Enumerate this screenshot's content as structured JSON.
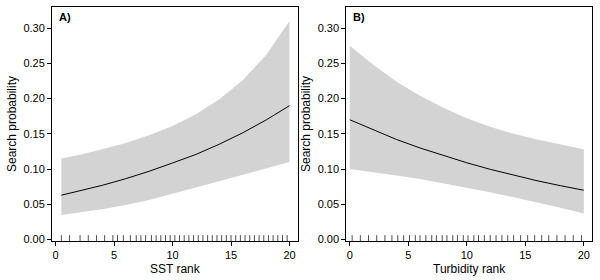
{
  "chart_data": [
    {
      "type": "line",
      "title": "A)",
      "xlabel": "SST rank",
      "ylabel": "Search probability",
      "x": [
        0.5,
        2,
        4,
        6,
        8,
        10,
        12,
        14,
        16,
        18,
        20
      ],
      "values": [
        0.063,
        0.0686,
        0.077,
        0.0864,
        0.0969,
        0.1087,
        0.1208,
        0.1353,
        0.1515,
        0.1697,
        0.19
      ],
      "lower": [
        0.035,
        0.038,
        0.043,
        0.049,
        0.056,
        0.065,
        0.074,
        0.083,
        0.092,
        0.101,
        0.11
      ],
      "upper": [
        0.115,
        0.12,
        0.128,
        0.137,
        0.148,
        0.161,
        0.178,
        0.199,
        0.226,
        0.262,
        0.31
      ],
      "rug": [
        0.5,
        1.2,
        2.1,
        2.8,
        3.5,
        4.2,
        4.9,
        5.3,
        5.8,
        6.4,
        6.9,
        7.3,
        7.7,
        8.2,
        8.6,
        9.0,
        9.4,
        9.8,
        10.2,
        10.6,
        11.0,
        11.4,
        11.8,
        12.2,
        12.6,
        13.0,
        13.4,
        13.8,
        14.2,
        14.6,
        15.0,
        15.4,
        15.8,
        16.2,
        16.6,
        17.0,
        17.4,
        17.8,
        18.2,
        18.6,
        19.0,
        19.4,
        19.8
      ],
      "color": "#000000",
      "xlim": [
        -0.3,
        20.7
      ],
      "xticks": [
        0,
        5,
        10,
        15,
        20
      ],
      "ylim": [
        -0.002,
        0.33
      ],
      "yticks": [
        {
          "value": 0,
          "label": "0.00"
        },
        0.05,
        {
          "value": 0.1,
          "label": "0.10"
        },
        0.15,
        {
          "value": 0.2,
          "label": "0.20"
        },
        0.25,
        {
          "value": 0.3,
          "label": "0.30"
        }
      ],
      "grid": false
    },
    {
      "type": "line",
      "title": "B)",
      "xlabel": "Turbidity rank",
      "ylabel": "Search probability",
      "x": [
        0,
        2,
        4,
        6,
        8,
        10,
        12,
        14,
        16,
        18,
        20
      ],
      "values": [
        0.17,
        0.156,
        0.142,
        0.13,
        0.119,
        0.109,
        0.0997,
        0.0912,
        0.0835,
        0.0765,
        0.07
      ],
      "lower": [
        0.1,
        0.096,
        0.091,
        0.086,
        0.08,
        0.074,
        0.067,
        0.06,
        0.053,
        0.045,
        0.037
      ],
      "upper": [
        0.275,
        0.248,
        0.224,
        0.204,
        0.187,
        0.172,
        0.16,
        0.15,
        0.142,
        0.135,
        0.128
      ],
      "rug": [
        0.2,
        0.9,
        1.6,
        2.3,
        3.0,
        3.6,
        4.1,
        4.6,
        5.1,
        5.6,
        6.0,
        6.5,
        7.0,
        7.4,
        7.9,
        8.3,
        8.8,
        9.2,
        9.7,
        10.1,
        10.6,
        11.0,
        11.5,
        12.0,
        12.5,
        13.0,
        13.5,
        14.0,
        14.6,
        15.2,
        15.8,
        16.4,
        17.0,
        17.7,
        18.4,
        19.1,
        19.8
      ],
      "color": "#000000",
      "xlim": [
        -0.3,
        20.7
      ],
      "xticks": [
        0,
        5,
        10,
        15,
        20
      ],
      "ylim": [
        -0.002,
        0.33
      ],
      "yticks": [
        {
          "value": 0,
          "label": "0.00"
        },
        0.05,
        {
          "value": 0.1,
          "label": "0.10"
        },
        0.15,
        {
          "value": 0.2,
          "label": "0.20"
        },
        0.25,
        {
          "value": 0.3,
          "label": "0.30"
        }
      ],
      "grid": false
    }
  ]
}
